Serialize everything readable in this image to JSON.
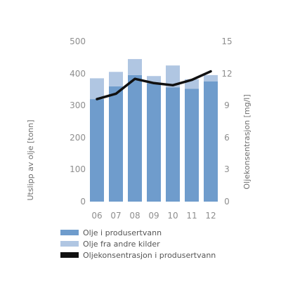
{
  "chart_data": {
    "type": "bar",
    "categories": [
      "06",
      "07",
      "08",
      "09",
      "10",
      "11",
      "12"
    ],
    "series": [
      {
        "name": "Olje i produsertvann",
        "values": [
          320,
          360,
          395,
          370,
          357,
          352,
          375
        ],
        "color": "#6f9ccc",
        "axis": "left"
      },
      {
        "name": "Olje fra andre kilder",
        "values": [
          65,
          45,
          50,
          22,
          68,
          30,
          20
        ],
        "color": "#b0c6e2",
        "axis": "left"
      },
      {
        "name": "Oljekonsentrasjon i produsertvann",
        "type": "line",
        "values": [
          9.6,
          10.1,
          11.5,
          11.1,
          10.9,
          11.4,
          12.2
        ],
        "color": "#111111",
        "axis": "right"
      }
    ],
    "stacked": true,
    "ylabel": "Utslipp av olje [tonn]",
    "ylabel_right": "Oljekonsentrasjon [mg/l]",
    "ylim": [
      0,
      500
    ],
    "ylim_right": [
      0,
      15
    ],
    "yticks": [
      "0",
      "100",
      "200",
      "300",
      "400",
      "500"
    ],
    "yticks_right": [
      "0",
      "3",
      "6",
      "9",
      "12",
      "15"
    ],
    "grid": false,
    "legend_position": "bottom"
  }
}
